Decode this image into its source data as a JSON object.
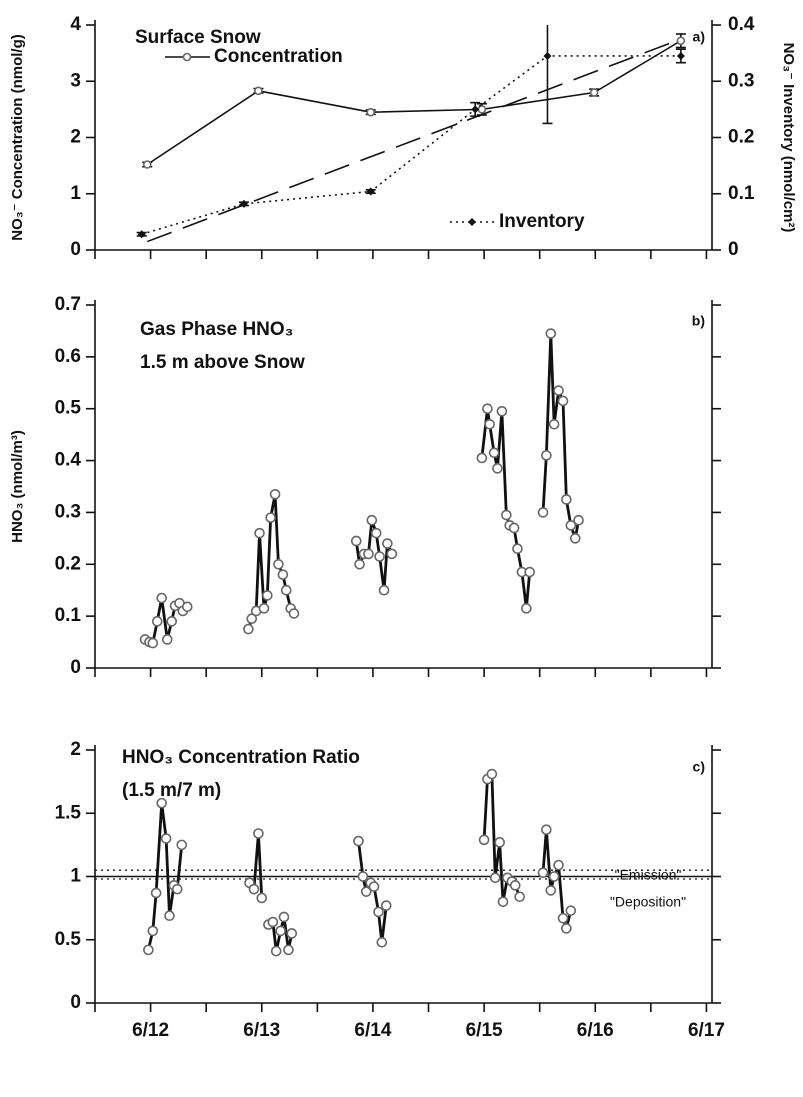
{
  "chart_data": [
    {
      "type": "line",
      "title": "Surface Snow",
      "panel_label": "a)",
      "ylabel": "NO₃⁻ Concentration (nmol/g)",
      "y2label": "NO₃⁻ Inventory (nmol/cm²)",
      "xlim": [
        11.5,
        17.05
      ],
      "xminorticks": [
        11.5,
        12,
        12.5,
        13,
        13.5,
        14,
        14.5,
        15,
        15.5,
        16,
        16.5,
        17
      ],
      "ylim": [
        0,
        4
      ],
      "yticks": [
        0,
        1,
        2,
        3,
        4
      ],
      "y2lim": [
        0,
        0.4
      ],
      "y2ticks": [
        0,
        0.1,
        0.2,
        0.3,
        0.4
      ],
      "series": [
        {
          "name": "Concentration",
          "color": "#111111",
          "marker": "circle",
          "dash": "solid",
          "x": [
            11.97,
            12.97,
            13.98,
            14.98,
            15.99,
            16.77
          ],
          "values": [
            1.52,
            2.83,
            2.45,
            2.5,
            2.8,
            3.72
          ],
          "errors": [
            0.04,
            0.04,
            0.04,
            0.1,
            0.06,
            0.12
          ]
        },
        {
          "name": "Inventory",
          "color": "#111111",
          "marker": "diamond",
          "dash": "dotted",
          "axis": "y2",
          "x": [
            11.92,
            12.84,
            13.98,
            14.92,
            15.57,
            16.77
          ],
          "values": [
            0.028,
            0.082,
            0.104,
            0.25,
            0.345,
            0.345
          ],
          "errors": [
            0.003,
            0.003,
            0.003,
            0.012,
            0.12,
            0.012
          ]
        }
      ],
      "fit_line": {
        "x": [
          11.97,
          16.77
        ],
        "values": [
          0.015,
          0.375
        ],
        "axis": "y2",
        "dash": "long-dash",
        "color": "#111111"
      }
    },
    {
      "type": "line",
      "title": "Gas Phase HNO₃",
      "subtitle": "1.5 m above Snow",
      "panel_label": "b)",
      "ylabel": "HNO₃ (nmol/m³)",
      "xlim": [
        11.5,
        17.05
      ],
      "xminorticks": [
        11.5,
        12,
        12.5,
        13,
        13.5,
        14,
        14.5,
        15,
        15.5,
        16,
        16.5,
        17
      ],
      "ylim": [
        0,
        0.7
      ],
      "yticks": [
        0,
        0.1,
        0.2,
        0.3,
        0.4,
        0.5,
        0.6,
        0.7
      ],
      "series": [
        {
          "color": "#111111",
          "marker": "circle",
          "dash": "solid",
          "x": [
            11.95,
            11.99,
            12.02,
            12.06,
            12.1,
            12.15,
            12.19,
            12.22,
            12.26,
            12.29,
            12.33,
            null,
            12.88,
            12.91,
            12.95,
            12.98,
            13.02,
            13.05,
            13.08,
            13.12,
            13.15,
            13.19,
            13.22,
            13.26,
            13.29,
            null,
            13.85,
            13.88,
            13.92,
            13.96,
            13.99,
            14.03,
            14.06,
            14.1,
            14.13,
            14.17,
            null,
            14.98,
            15.03,
            15.05,
            15.09,
            15.12,
            15.16,
            15.2,
            15.23,
            15.27,
            15.3,
            15.34,
            15.38,
            15.41,
            null,
            15.53,
            15.56,
            15.6,
            15.63,
            15.67,
            15.71,
            15.74,
            15.78,
            15.82,
            15.85
          ],
          "values": [
            0.055,
            0.05,
            0.048,
            0.09,
            0.135,
            0.055,
            0.09,
            0.12,
            0.125,
            0.11,
            0.118,
            null,
            0.075,
            0.095,
            0.11,
            0.26,
            0.115,
            0.14,
            0.29,
            0.335,
            0.2,
            0.18,
            0.15,
            0.115,
            0.105,
            null,
            0.245,
            0.2,
            0.22,
            0.22,
            0.285,
            0.26,
            0.215,
            0.15,
            0.24,
            0.22,
            null,
            0.405,
            0.5,
            0.47,
            0.415,
            0.385,
            0.495,
            0.295,
            0.275,
            0.27,
            0.23,
            0.185,
            0.115,
            0.185,
            null,
            0.3,
            0.41,
            0.645,
            0.47,
            0.535,
            0.515,
            0.325,
            0.275,
            0.25,
            0.285
          ]
        }
      ]
    },
    {
      "type": "line",
      "title": "HNO₃ Concentration Ratio",
      "subtitle": "(1.5 m/7 m)",
      "panel_label": "c)",
      "xlim": [
        11.5,
        17.05
      ],
      "xminorticks": [
        11.5,
        12,
        12.5,
        13,
        13.5,
        14,
        14.5,
        15,
        15.5,
        16,
        16.5,
        17
      ],
      "xticks": [
        {
          "value": 12,
          "label": "6/12"
        },
        {
          "value": 13,
          "label": "6/13"
        },
        {
          "value": 14,
          "label": "6/14"
        },
        {
          "value": 15,
          "label": "6/15"
        },
        {
          "value": 16,
          "label": "6/16"
        },
        {
          "value": 17,
          "label": "6/17"
        }
      ],
      "ylim": [
        0,
        2
      ],
      "yticks": [
        0,
        0.5,
        1,
        1.5,
        2
      ],
      "reference_lines": [
        {
          "value": 1,
          "style": "solid"
        },
        {
          "value": 1.05,
          "style": "dotted"
        },
        {
          "value": 0.98,
          "style": "dotted"
        }
      ],
      "annotations": [
        "\"Emission\"",
        "\"Deposition\""
      ],
      "series": [
        {
          "color": "#111111",
          "marker": "circle",
          "dash": "solid",
          "x": [
            11.98,
            12.02,
            12.05,
            12.1,
            12.14,
            12.17,
            12.21,
            12.24,
            12.28,
            null,
            12.89,
            12.93,
            12.97,
            13.0,
            null,
            13.06,
            13.1,
            13.13,
            13.17,
            13.2,
            13.24,
            13.27,
            null,
            13.87,
            13.91,
            13.94,
            13.98,
            14.01,
            14.05,
            14.08,
            14.12,
            null,
            15.0,
            15.03,
            15.07,
            15.1,
            15.14,
            15.17,
            15.21,
            15.25,
            15.28,
            15.32,
            null,
            15.53,
            15.56,
            15.6,
            15.63,
            15.67,
            15.71,
            15.74,
            15.78
          ],
          "values": [
            0.42,
            0.57,
            0.87,
            1.58,
            1.3,
            0.69,
            0.93,
            0.9,
            1.25,
            null,
            0.95,
            0.9,
            1.34,
            0.83,
            null,
            0.62,
            0.64,
            0.41,
            0.57,
            0.68,
            0.42,
            0.55,
            null,
            1.28,
            1.0,
            0.88,
            0.95,
            0.92,
            0.72,
            0.48,
            0.77,
            null,
            1.29,
            1.77,
            1.81,
            0.99,
            1.27,
            0.8,
            0.99,
            0.96,
            0.93,
            0.84,
            null,
            1.03,
            1.37,
            0.89,
            1.0,
            1.09,
            0.67,
            0.59,
            0.73
          ]
        }
      ]
    }
  ]
}
